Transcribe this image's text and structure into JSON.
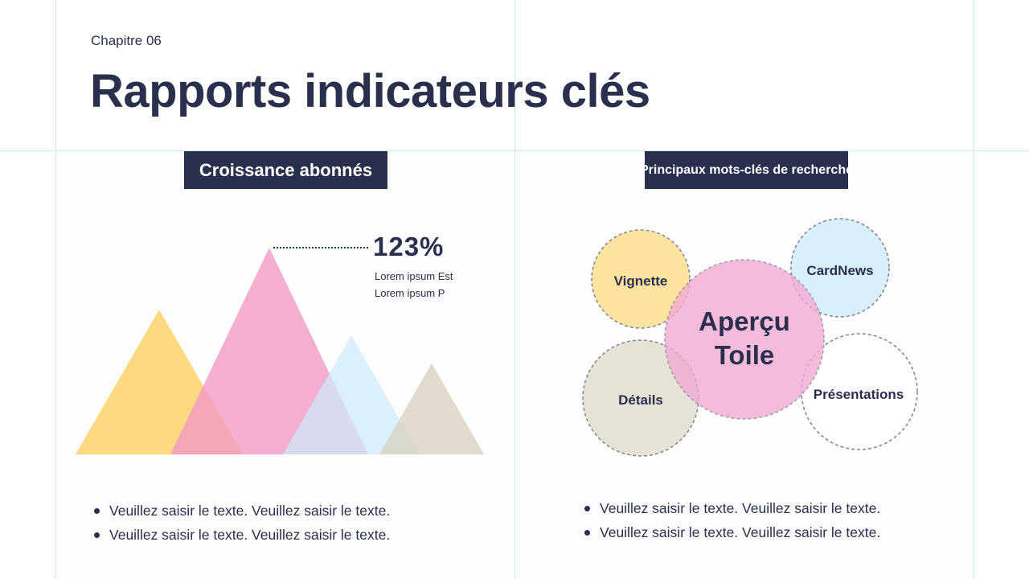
{
  "header": {
    "chapter": "Chapitre 06",
    "title": "Rapports indicateurs clés"
  },
  "left": {
    "heading": "Croissance abonnés",
    "stat": "123%",
    "stat_lines": [
      "Lorem ipsum Est",
      "Lorem ipsum P"
    ],
    "bullets": [
      "Veuillez saisir le texte. Veuillez saisir le texte.",
      "Veuillez saisir le texte. Veuillez saisir le texte."
    ],
    "colors": {
      "yellow": "#fdd77a",
      "pink": "#f3a3c9",
      "blue": "#d5eefb",
      "beige": "#ddd8cb"
    }
  },
  "right": {
    "heading": "Principaux mots-clés de recherche",
    "bubbles": [
      {
        "label": "Vignette",
        "color": "#fde3a0"
      },
      {
        "label": "CardNews",
        "color": "#d8effc"
      },
      {
        "label": "Détails",
        "color": "#e6e2d6"
      },
      {
        "label": "Présentations",
        "color": "#ffffff"
      },
      {
        "label": "Aperçu Toile",
        "color": "#f6bcdc"
      }
    ],
    "bullets": [
      "Veuillez saisir le texte. Veuillez saisir le texte.",
      "Veuillez saisir le texte. Veuillez saisir le texte."
    ]
  }
}
